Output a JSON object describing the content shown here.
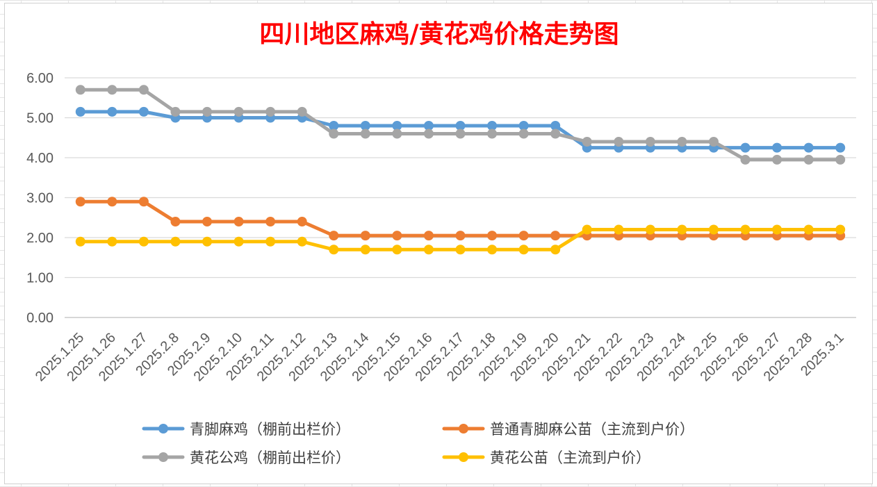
{
  "chart_data": {
    "type": "line",
    "title": "四川地区麻鸡/黄花鸡价格走势图",
    "title_color": "#ff0000",
    "xlabel": "",
    "ylabel": "",
    "ylim": [
      0,
      6
    ],
    "y_ticks": [
      "0.00",
      "1.00",
      "2.00",
      "3.00",
      "4.00",
      "5.00",
      "6.00"
    ],
    "y_tick_values": [
      0,
      1,
      2,
      3,
      4,
      5,
      6
    ],
    "grid": true,
    "legend_position": "bottom",
    "categories": [
      "2025.1.25",
      "2025.1.26",
      "2025.1.27",
      "2025.2.8",
      "2025.2.9",
      "2025.2.10",
      "2025.2.11",
      "2025.2.12",
      "2025.2.13",
      "2025.2.14",
      "2025.2.15",
      "2025.2.16",
      "2025.2.17",
      "2025.2.18",
      "2025.2.19",
      "2025.2.20",
      "2025.2.21",
      "2025.2.22",
      "2025.2.23",
      "2025.2.24",
      "2025.2.25",
      "2025.2.26",
      "2025.2.27",
      "2025.2.28",
      "2025.3.1"
    ],
    "series": [
      {
        "name": "青脚麻鸡（棚前出栏价）",
        "color": "#5b9bd5",
        "values": [
          5.15,
          5.15,
          5.15,
          5.0,
          5.0,
          5.0,
          5.0,
          5.0,
          4.8,
          4.8,
          4.8,
          4.8,
          4.8,
          4.8,
          4.8,
          4.8,
          4.25,
          4.25,
          4.25,
          4.25,
          4.25,
          4.25,
          4.25,
          4.25,
          4.25
        ]
      },
      {
        "name": "普通青脚麻公苗（主流到户价）",
        "color": "#ed7d31",
        "values": [
          2.9,
          2.9,
          2.9,
          2.4,
          2.4,
          2.4,
          2.4,
          2.4,
          2.05,
          2.05,
          2.05,
          2.05,
          2.05,
          2.05,
          2.05,
          2.05,
          2.05,
          2.05,
          2.05,
          2.05,
          2.05,
          2.05,
          2.05,
          2.05,
          2.05
        ]
      },
      {
        "name": "黄花公鸡（棚前出栏价）",
        "color": "#a5a5a5",
        "values": [
          5.7,
          5.7,
          5.7,
          5.15,
          5.15,
          5.15,
          5.15,
          5.15,
          4.6,
          4.6,
          4.6,
          4.6,
          4.6,
          4.6,
          4.6,
          4.6,
          4.4,
          4.4,
          4.4,
          4.4,
          4.4,
          3.95,
          3.95,
          3.95,
          3.95
        ]
      },
      {
        "name": "黄花公苗（主流到户价）",
        "color": "#ffc000",
        "values": [
          1.9,
          1.9,
          1.9,
          1.9,
          1.9,
          1.9,
          1.9,
          1.9,
          1.7,
          1.7,
          1.7,
          1.7,
          1.7,
          1.7,
          1.7,
          1.7,
          2.2,
          2.2,
          2.2,
          2.2,
          2.2,
          2.2,
          2.2,
          2.2,
          2.2
        ]
      }
    ]
  }
}
